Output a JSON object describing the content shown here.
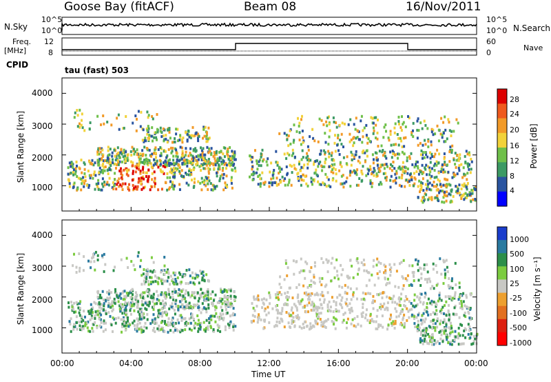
{
  "header": {
    "station": "Goose Bay (fitACF)",
    "beam": "Beam 08",
    "date": "16/Nov/2011"
  },
  "top_panels": {
    "nsky_label": "N.Sky",
    "nsearch_label": "N.Search",
    "nsky_ticks": [
      "10^5",
      "10^0"
    ],
    "nsearch_ticks": [
      "10^5",
      "10^0"
    ],
    "freq_label": "Freq.",
    "freq_unit": "[MHz]",
    "freq_ticks": [
      "12",
      "8"
    ],
    "nave_label": "Nave",
    "nave_ticks": [
      "60",
      "0"
    ],
    "cpid_label": "CPID",
    "cpid_value": "tau (fast) 503"
  },
  "colors": {
    "power": [
      "#0000ff",
      "#2a54a0",
      "#3c9a64",
      "#6fc04a",
      "#f2d23a",
      "#f29a28",
      "#ef5a1e",
      "#dd0000"
    ],
    "velocity": [
      "#1a3dcc",
      "#2a7aa0",
      "#2c8f4a",
      "#7ccc40",
      "#c8c8c4",
      "#eda030",
      "#e27020",
      "#dd2010",
      "#ff0000"
    ]
  },
  "chart_data": [
    {
      "type": "heatmap",
      "title": "Power",
      "ylabel": "Slant Range [km]",
      "xlabel": "Time UT",
      "ylim": [
        180,
        4500
      ],
      "xlim": [
        0,
        24
      ],
      "y_ticks": [
        "4000",
        "3000",
        "2000",
        "1000"
      ],
      "x_ticks": [
        "00:00",
        "04:00",
        "08:00",
        "12:00",
        "16:00",
        "20:00",
        "00:00"
      ],
      "colorbar_label": "Power [dB]",
      "colorbar_ticks": [
        "28",
        "24",
        "20",
        "16",
        "12",
        "8",
        "4"
      ]
    },
    {
      "type": "heatmap",
      "title": "Velocity",
      "ylabel": "Slant Range [km]",
      "xlabel": "Time UT",
      "ylim": [
        180,
        4500
      ],
      "xlim": [
        0,
        24
      ],
      "y_ticks": [
        "4000",
        "3000",
        "2000",
        "1000"
      ],
      "x_ticks": [
        "00:00",
        "04:00",
        "08:00",
        "12:00",
        "16:00",
        "20:00",
        "00:00"
      ],
      "colorbar_label": "Velocity [m s⁻¹]",
      "colorbar_ticks": [
        "1000",
        "500",
        "100",
        "25",
        "-25",
        "-100",
        "-500",
        "-1000"
      ]
    }
  ]
}
